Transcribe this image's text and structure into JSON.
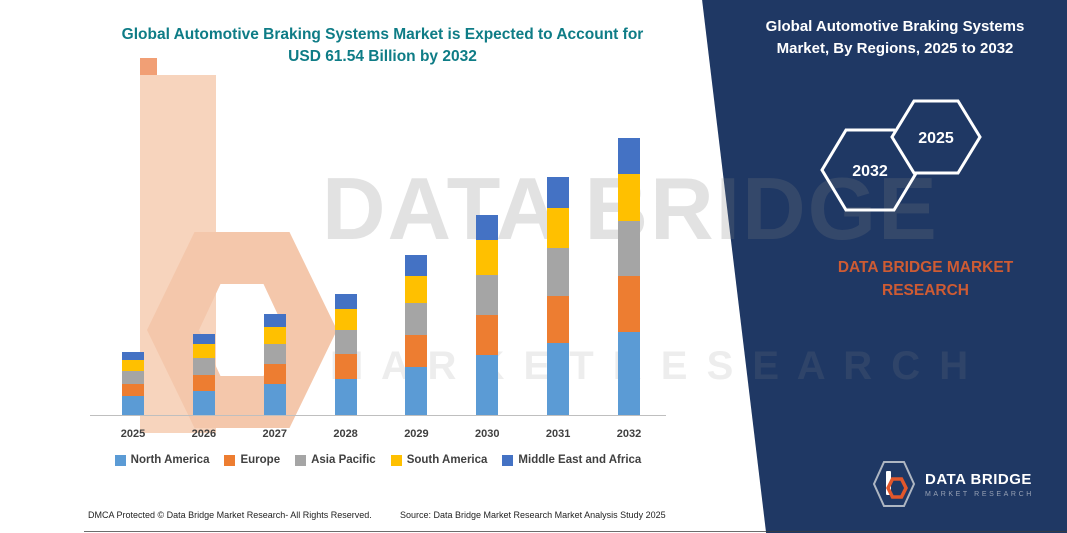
{
  "colors": {
    "title_teal": "#0E7C86",
    "panel_navy": "#1F3864",
    "brand_orange": "#CE5B33",
    "logo_orange": "#E2572B",
    "axis_gray": "#BFBFBF",
    "text_dark": "#404040"
  },
  "page": {
    "left_title_line1": "Global Automotive Braking Systems Market is Expected to Account for",
    "left_title_line2": "USD 61.54 Billion by 2032",
    "footer_left": "DMCA Protected © Data Bridge Market Research-  All Rights Reserved.",
    "footer_source": "Source: Data Bridge Market Research  Market Analysis Study 2025"
  },
  "watermark": {
    "line1": "DATA BRIDGE",
    "line2": "M A R K E T   R E S E A R C H"
  },
  "right_panel": {
    "title_line1": "Global Automotive Braking Systems",
    "title_line2": "Market, By Regions, 2025 to 2032",
    "hex_back_year": "2032",
    "hex_front_year": "2025",
    "brand_line1": "DATA BRIDGE MARKET",
    "brand_line2": "RESEARCH",
    "logo_name": "DATA BRIDGE",
    "logo_sub": "MARKET RESEARCH"
  },
  "chart_data": {
    "type": "bar",
    "stacked": true,
    "title": "Global Automotive Braking Systems Market is Expected to Account for USD 61.54 Billion by 2032",
    "unit": "USD Billion",
    "ylim": [
      0,
      65
    ],
    "grid": false,
    "legend_position": "bottom",
    "categories": [
      "2025",
      "2026",
      "2027",
      "2028",
      "2029",
      "2030",
      "2031",
      "2032"
    ],
    "series": [
      {
        "name": "North America",
        "color": "#5B9BD5",
        "values": [
          4.2,
          5.4,
          6.8,
          8.1,
          10.7,
          13.4,
          15.9,
          18.5
        ]
      },
      {
        "name": "Europe",
        "color": "#ED7D31",
        "values": [
          2.8,
          3.6,
          4.5,
          5.4,
          7.1,
          8.9,
          10.6,
          12.3
        ]
      },
      {
        "name": "Asia Pacific",
        "color": "#A5A5A5",
        "values": [
          2.8,
          3.6,
          4.5,
          5.4,
          7.1,
          8.9,
          10.6,
          12.3
        ]
      },
      {
        "name": "South America",
        "color": "#FFC000",
        "values": [
          2.4,
          3.1,
          3.8,
          4.6,
          6.0,
          7.6,
          9.0,
          10.4
        ]
      },
      {
        "name": "Middle East and Africa",
        "color": "#4472C4",
        "values": [
          1.8,
          2.3,
          2.9,
          3.5,
          4.6,
          5.7,
          6.9,
          8.0
        ]
      }
    ],
    "totals": [
      14.0,
      18.0,
      22.5,
      27.0,
      35.5,
      44.5,
      53.0,
      61.54
    ]
  }
}
